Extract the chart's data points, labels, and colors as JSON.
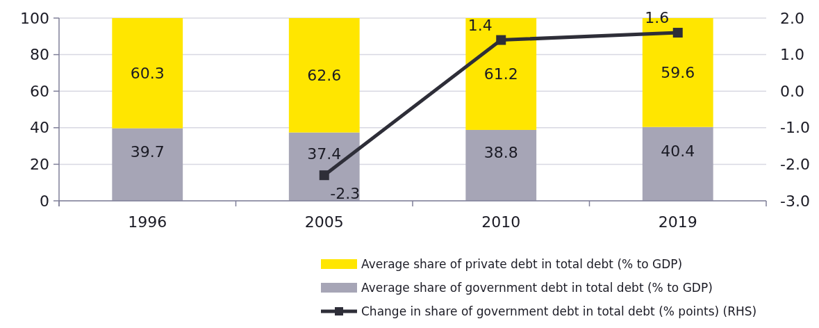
{
  "chart_data": {
    "type": "bar",
    "stacked": true,
    "categories": [
      "1996",
      "2005",
      "2010",
      "2019"
    ],
    "series": [
      {
        "name": "Average share of government debt in total debt (% to GDP)",
        "color": "#a6a5b6",
        "values": [
          39.7,
          37.4,
          38.8,
          40.4
        ]
      },
      {
        "name": "Average share of private debt in total debt (% to GDP)",
        "color": "#ffe600",
        "values": [
          60.3,
          62.6,
          61.2,
          59.6
        ]
      },
      {
        "name": "Change in share of government debt in total debt (% points) (RHS)",
        "type": "line",
        "axis": "y2",
        "color": "#2e2e38",
        "marker": "square",
        "values": [
          null,
          -2.3,
          1.4,
          1.6
        ]
      }
    ],
    "ylim": [
      0,
      100
    ],
    "yticks": [
      0,
      20,
      40,
      60,
      80,
      100
    ],
    "y2lim": [
      -3,
      2
    ],
    "y2ticks": [
      {
        "value": -3,
        "label": "-3.0"
      },
      {
        "value": -2,
        "label": "-2.0"
      },
      {
        "value": -1,
        "label": "-1.0"
      },
      {
        "value": 0,
        "label": "0.0"
      },
      {
        "value": 1,
        "label": "1.0"
      },
      {
        "value": 2,
        "label": "2.0"
      }
    ],
    "grid": "y",
    "legend": "bottom right",
    "data_labels": true
  }
}
